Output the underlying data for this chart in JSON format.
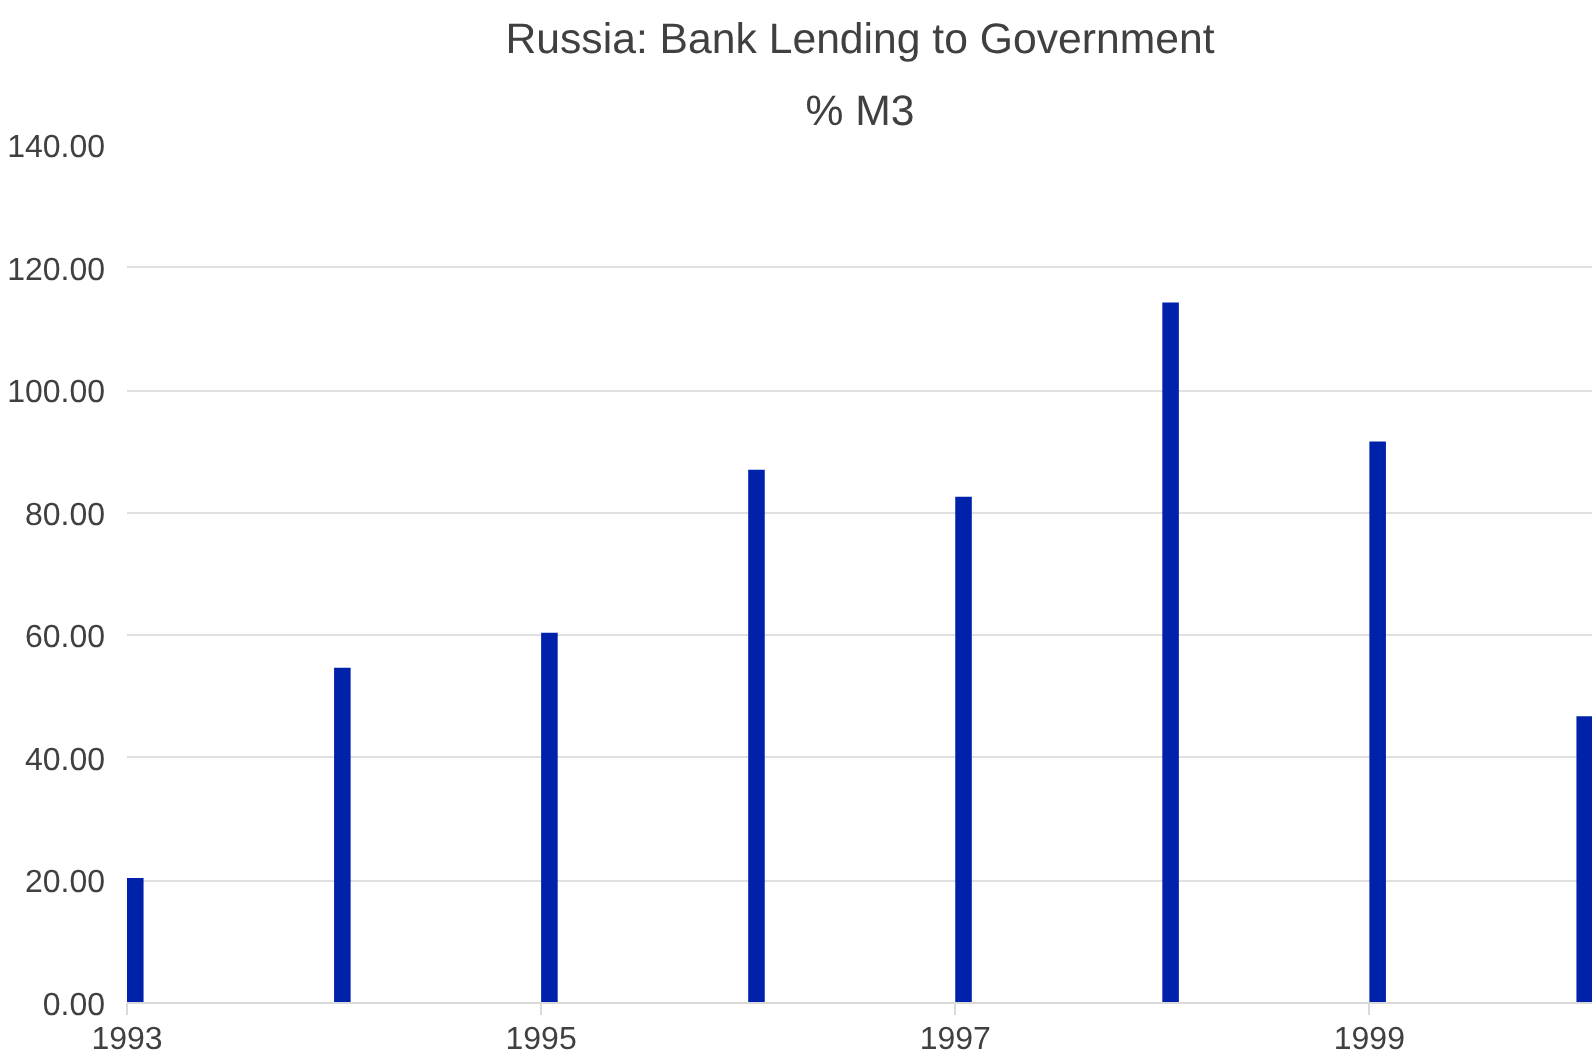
{
  "chart_data": {
    "type": "bar",
    "title": "Russia: Bank Lending to Government",
    "subtitle": "% M3",
    "x": [
      1993,
      1994,
      1995,
      1996,
      1997,
      1998,
      1999,
      2000
    ],
    "values": [
      20.4,
      54.7,
      60.4,
      87.0,
      82.6,
      114.3,
      91.6,
      46.8
    ],
    "color": "#0022aa",
    "xlim": [
      1993,
      2000.08
    ],
    "xticks": [
      1993,
      1995,
      1997,
      1999
    ],
    "ylim": [
      0,
      140
    ],
    "yticks": [
      {
        "value": 0,
        "label": "0.00"
      },
      {
        "value": 20,
        "label": "20.00"
      },
      {
        "value": 40,
        "label": "40.00"
      },
      {
        "value": 60,
        "label": "60.00"
      },
      {
        "value": 80,
        "label": "80.00"
      },
      {
        "value": 100,
        "label": "100.00"
      },
      {
        "value": 120,
        "label": "120.00"
      },
      {
        "value": 140,
        "label": "140.00"
      }
    ],
    "grid": "y"
  }
}
